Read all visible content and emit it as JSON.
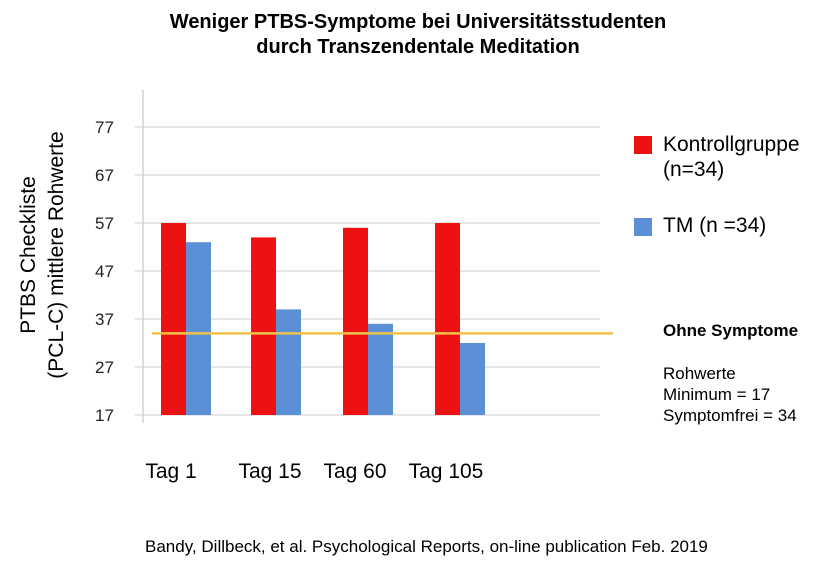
{
  "title_lines": [
    "Weniger PTBS-Symptome bei Universitätsstudenten",
    "durch Transzendentale Meditation"
  ],
  "ylabel_lines": [
    "PTBS Checkliste",
    "(PCL-C) mittlere Rohwerte"
  ],
  "legend": {
    "series0_lines": [
      "Kontrollgruppe",
      "(n=34)"
    ],
    "series1": "TM (n =34)"
  },
  "note": {
    "heading": "Ohne Symptome",
    "line1": "Rohwerte",
    "line2": "Minimum = 17",
    "line3": "Symptomfrei = 34"
  },
  "source": "Bandy, Dillbeck, et al. Psychological Reports, on-line publication Feb. 2019",
  "colors": {
    "control": "#ee1111",
    "tm": "#5b8fd6",
    "reference": "#f0c24a",
    "grid": "#cccccc"
  },
  "chart_data": {
    "type": "bar",
    "title": "Weniger PTBS-Symptome bei Universitätsstudenten durch Transzendentale Meditation",
    "xlabel": "",
    "ylabel": "PTBS Checkliste (PCL-C) mittlere Rohwerte",
    "categories": [
      "Tag 1",
      "Tag 15",
      "Tag 60",
      "Tag 105"
    ],
    "series": [
      {
        "name": "Kontrollgruppe (n=34)",
        "values": [
          57,
          54,
          56,
          57
        ]
      },
      {
        "name": "TM (n =34)",
        "values": [
          53,
          39,
          36,
          32
        ]
      }
    ],
    "yticks": [
      17,
      27,
      37,
      47,
      57,
      67,
      77
    ],
    "ylim": [
      17,
      77
    ],
    "reference_line": 34,
    "grid": true,
    "legend_position": "right"
  }
}
